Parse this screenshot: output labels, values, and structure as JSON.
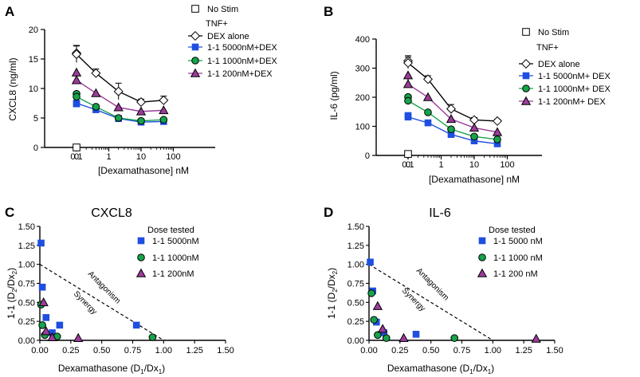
{
  "colors": {
    "blue": "#1f4fe0",
    "green": "#16a34a",
    "purple": "#9b3c9a",
    "open": "#ffffff",
    "axis": "#000000"
  },
  "chart_data": [
    {
      "panel": "A",
      "type": "line",
      "xlabel": "[Dexamathasone] nM",
      "ylabel": "CXCL8 (ng/ml)",
      "xticks": [
        "0",
        "0.1",
        "1",
        "10",
        "100"
      ],
      "yticks": [
        "0",
        "5",
        "10",
        "15",
        "20"
      ],
      "ylim": [
        0,
        20
      ],
      "x": [
        0,
        0.1,
        0.4,
        2,
        10,
        50
      ],
      "legend_top": "No Stim",
      "legend_header": "TNF+",
      "nostim": {
        "name": "No Stim",
        "x": 0,
        "y": 0
      },
      "series": [
        {
          "name": "DEX alone",
          "marker": "diamond",
          "color": "#ffffff",
          "values": [
            16.0,
            15.8,
            12.6,
            9.5,
            7.7,
            8.0
          ],
          "err": [
            1.3,
            1.4,
            0.7,
            1.4,
            0.5,
            0.7
          ]
        },
        {
          "name": "1-1 5000nM+DEX",
          "marker": "square",
          "color": "#1f4fe0",
          "values": [
            7.4,
            7.5,
            6.4,
            4.9,
            4.3,
            4.4
          ]
        },
        {
          "name": "1-1 1000nM+DEX",
          "marker": "circle",
          "color": "#16a34a",
          "values": [
            9.1,
            8.6,
            6.9,
            5.0,
            4.5,
            4.7
          ]
        },
        {
          "name": "1-1  200nM+DEX",
          "marker": "triangle",
          "color": "#9b3c9a",
          "values": [
            12.7,
            11.4,
            9.2,
            6.8,
            6.1,
            6.3
          ]
        }
      ]
    },
    {
      "panel": "B",
      "type": "line",
      "xlabel": "[Dexamathasone] nM",
      "ylabel": "IL-6 (pg/ml)",
      "xticks": [
        "0",
        "0.1",
        "1",
        "10",
        "100"
      ],
      "yticks": [
        "0",
        "100",
        "200",
        "300",
        "400"
      ],
      "ylim": [
        0,
        400
      ],
      "x": [
        0,
        0.1,
        0.4,
        2,
        10,
        50
      ],
      "legend_top": "No Stim",
      "legend_header": "TNF+",
      "nostim": {
        "name": "No Stim",
        "x": 0,
        "y": 5
      },
      "series": [
        {
          "name": "DEX alone",
          "marker": "diamond",
          "color": "#ffffff",
          "values": [
            325,
            318,
            262,
            160,
            122,
            118
          ],
          "err": [
            18,
            20,
            12,
            15,
            8,
            6
          ]
        },
        {
          "name": "1-1 5000nM+ DEX",
          "marker": "square",
          "color": "#1f4fe0",
          "values": [
            137,
            132,
            112,
            72,
            50,
            40
          ]
        },
        {
          "name": "1-1 1000nM+ DEX",
          "marker": "circle",
          "color": "#16a34a",
          "values": [
            201,
            188,
            148,
            90,
            65,
            55
          ]
        },
        {
          "name": "1-1   200nM+ DEX",
          "marker": "triangle",
          "color": "#9b3c9a",
          "values": [
            275,
            245,
            200,
            125,
            95,
            80
          ]
        }
      ]
    },
    {
      "panel": "C",
      "type": "scatter",
      "title": "CXCL8",
      "xlabel": "Dexamathasone (D1/Dx1)",
      "ylabel": "1-1 (D2/Dx2)",
      "xticks": [
        "0.00",
        "0.25",
        "0.50",
        "0.75",
        "1.00",
        "1.25",
        "1.50"
      ],
      "yticks": [
        "0.00",
        "0.25",
        "0.50",
        "0.75",
        "1.00",
        "1.25",
        "1.50"
      ],
      "xlim": [
        0,
        1.5
      ],
      "ylim": [
        0,
        1.5
      ],
      "legend_title": "Dose tested",
      "line_labels": {
        "above": "Antagonism",
        "below": "Synergy"
      },
      "series": [
        {
          "name": "1-1 5000nM",
          "marker": "square",
          "color": "#1f4fe0",
          "points": [
            [
              0.01,
              1.28
            ],
            [
              0.02,
              0.7
            ],
            [
              0.05,
              0.3
            ],
            [
              0.1,
              0.1
            ],
            [
              0.16,
              0.2
            ],
            [
              0.78,
              0.2
            ]
          ]
        },
        {
          "name": "1-1 1000nM",
          "marker": "circle",
          "color": "#16a34a",
          "points": [
            [
              0.01,
              0.47
            ],
            [
              0.02,
              0.2
            ],
            [
              0.04,
              0.07
            ],
            [
              0.14,
              0.05
            ],
            [
              0.91,
              0.04
            ]
          ]
        },
        {
          "name": "1-1  200nM",
          "marker": "triangle",
          "color": "#9b3c9a",
          "points": [
            [
              0.03,
              0.5
            ],
            [
              0.05,
              0.12
            ],
            [
              0.1,
              0.04
            ],
            [
              0.31,
              0.03
            ]
          ]
        }
      ]
    },
    {
      "panel": "D",
      "type": "scatter",
      "title": "IL-6",
      "xlabel": "Dexamathasone (D1/Dx1)",
      "ylabel": "1-1 (D2/Dx2)",
      "xticks": [
        "0.00",
        "0.25",
        "0.50",
        "0.75",
        "1.00",
        "1.25",
        "1.50"
      ],
      "yticks": [
        "0.00",
        "0.25",
        "0.50",
        "0.75",
        "1.00",
        "1.25",
        "1.50"
      ],
      "xlim": [
        0,
        1.5
      ],
      "ylim": [
        0,
        1.5
      ],
      "legend_title": "Dose tested",
      "line_labels": {
        "above": "Antagonism",
        "below": "Synergy"
      },
      "series": [
        {
          "name": "1-1 5000 nM",
          "marker": "square",
          "color": "#1f4fe0",
          "points": [
            [
              0.01,
              1.03
            ],
            [
              0.03,
              0.65
            ],
            [
              0.06,
              0.24
            ],
            [
              0.12,
              0.1
            ],
            [
              0.38,
              0.08
            ]
          ]
        },
        {
          "name": "1-1 1000 nM",
          "marker": "circle",
          "color": "#16a34a",
          "points": [
            [
              0.02,
              0.62
            ],
            [
              0.04,
              0.27
            ],
            [
              0.07,
              0.07
            ],
            [
              0.14,
              0.03
            ],
            [
              0.69,
              0.03
            ]
          ]
        },
        {
          "name": "1-1   200 nM",
          "marker": "triangle",
          "color": "#9b3c9a",
          "points": [
            [
              0.07,
              0.45
            ],
            [
              0.11,
              0.15
            ],
            [
              0.28,
              0.03
            ],
            [
              1.35,
              0.02
            ]
          ]
        }
      ]
    }
  ]
}
